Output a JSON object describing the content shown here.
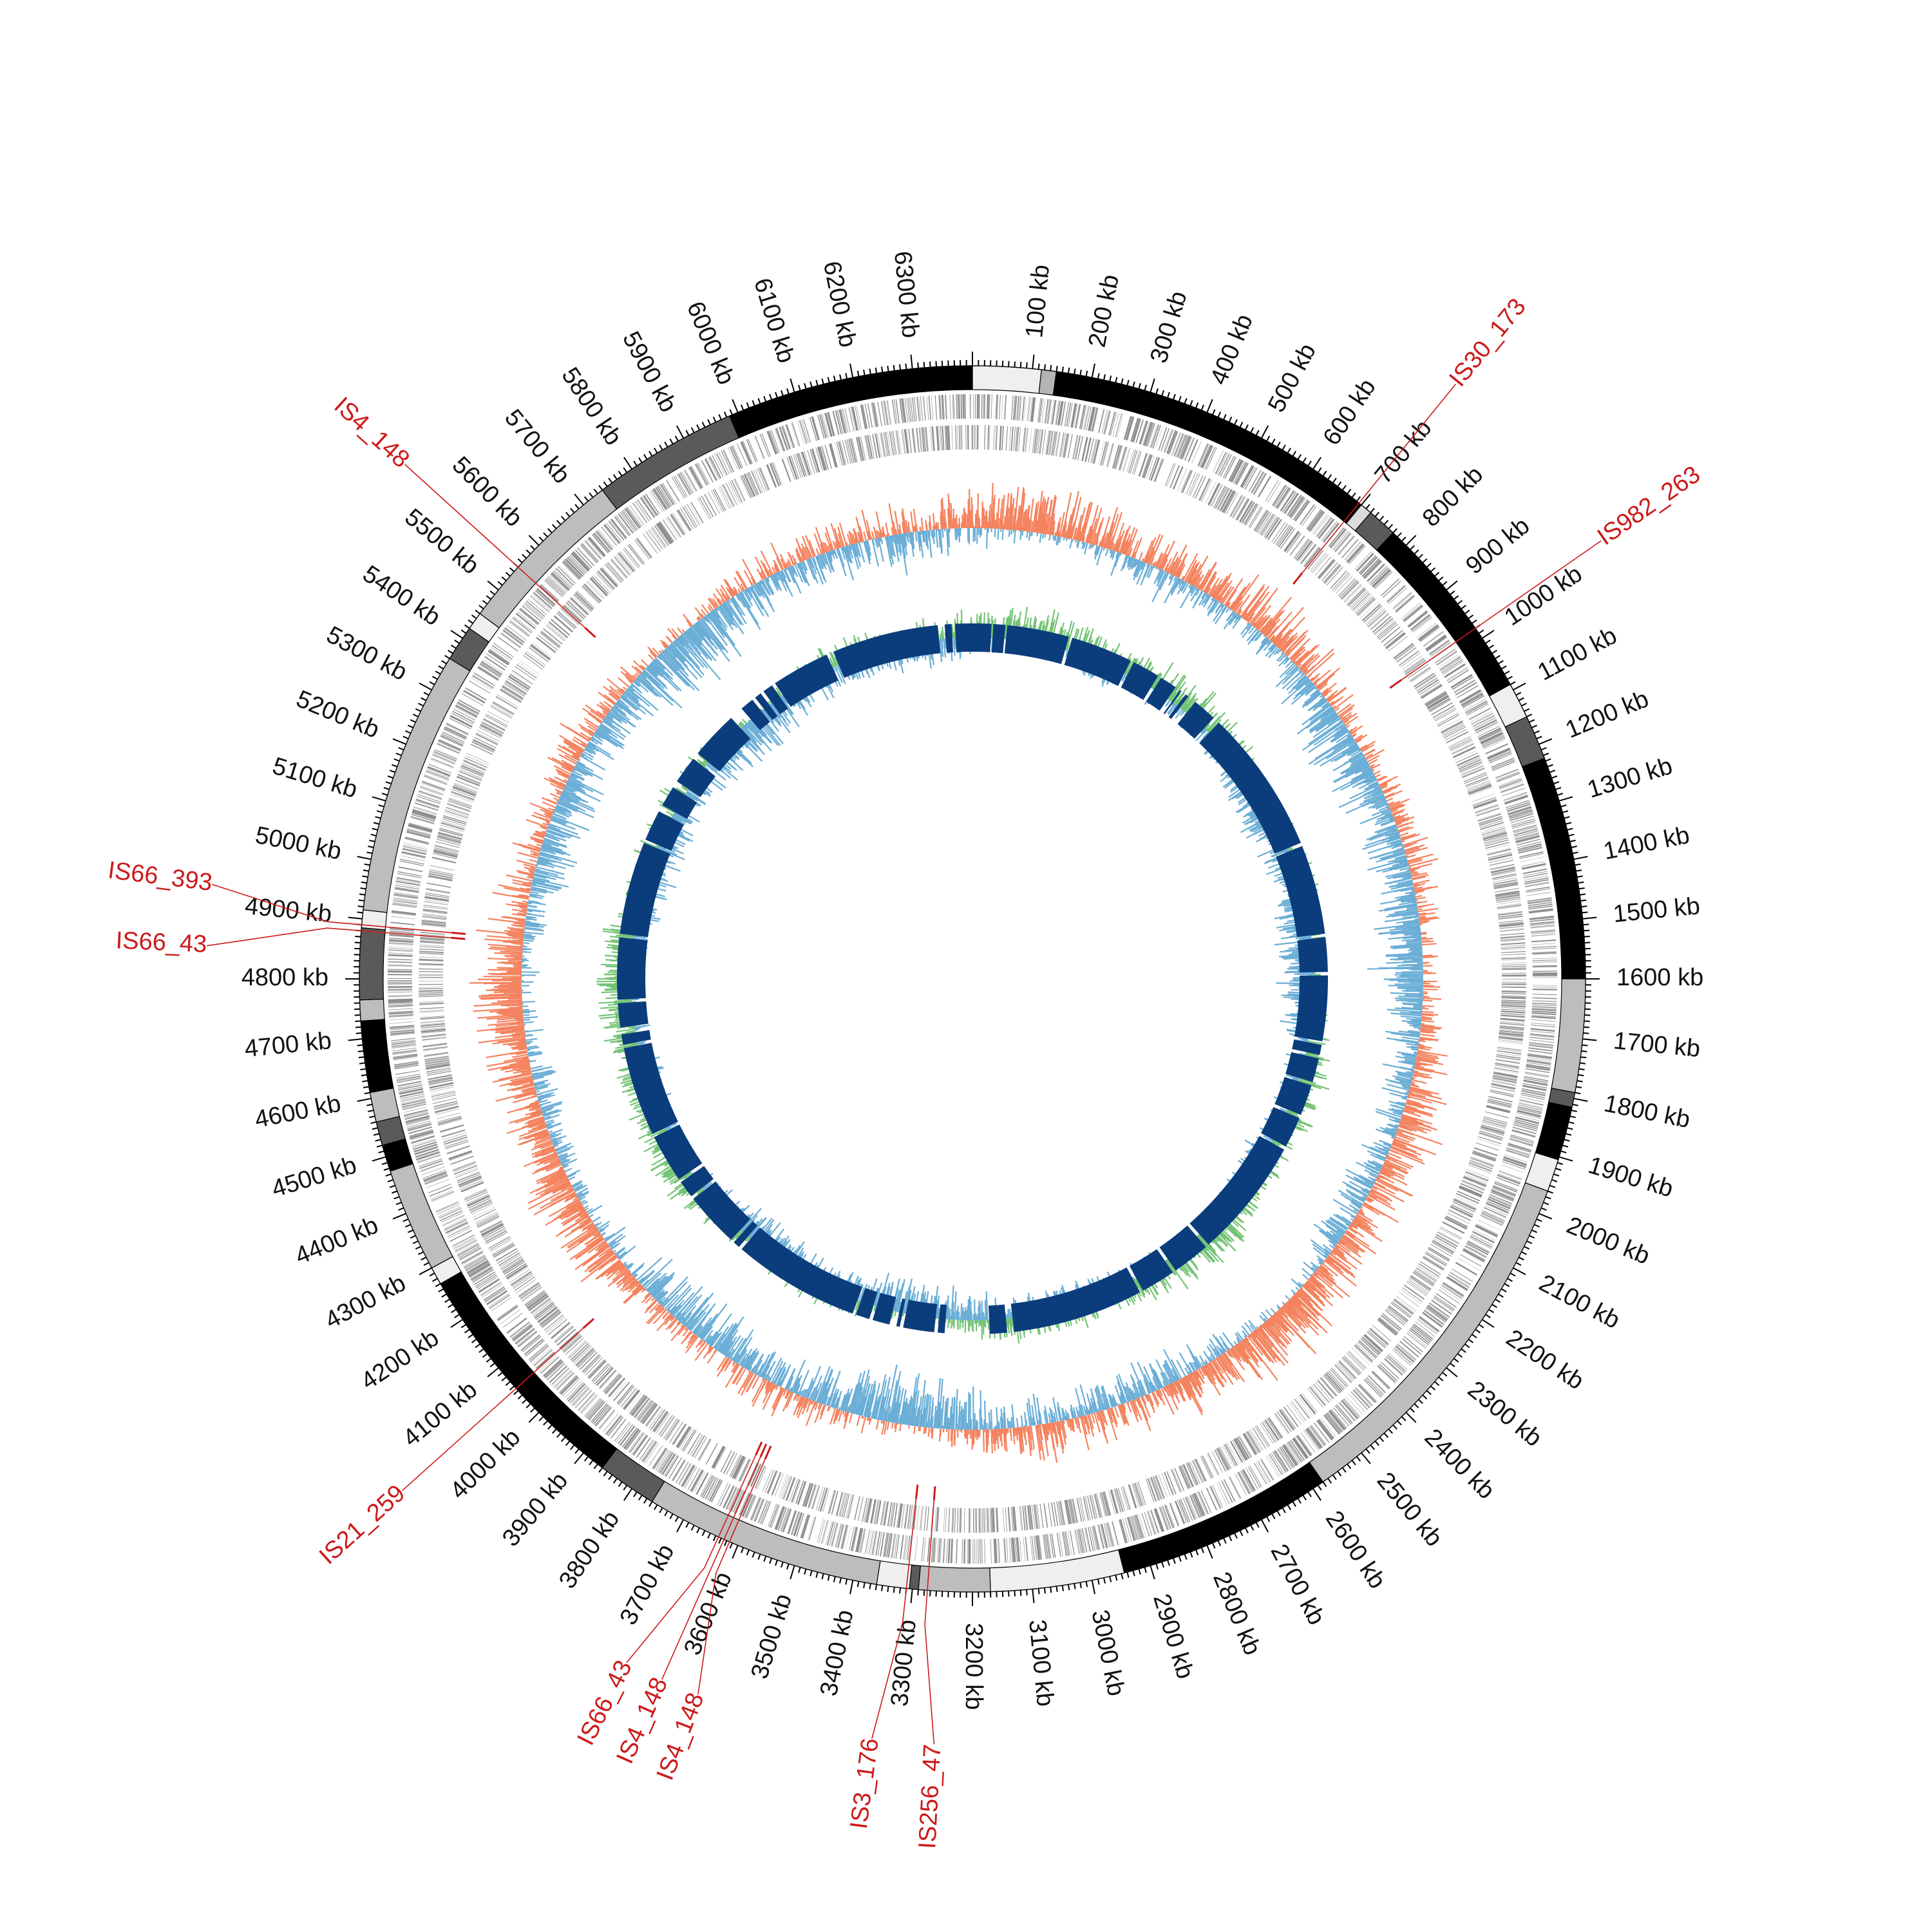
{
  "genome": {
    "length_kb": 6400,
    "tick_labels": [
      "100 kb",
      "200 kb",
      "300 kb",
      "400 kb",
      "500 kb",
      "600 kb",
      "700 kb",
      "800 kb",
      "900 kb",
      "1000 kb",
      "1100 kb",
      "1200 kb",
      "1300 kb",
      "1400 kb",
      "1500 kb",
      "1600 kb",
      "1700 kb",
      "1800 kb",
      "1900 kb",
      "2000 kb",
      "2100 kb",
      "2200 kb",
      "2300 kb",
      "2400 kb",
      "2500 kb",
      "2600 kb",
      "2700 kb",
      "2800 kb",
      "2900 kb",
      "3000 kb",
      "3100 kb",
      "3200 kb",
      "3300 kb",
      "3400 kb",
      "3500 kb",
      "3600 kb",
      "3700 kb",
      "3800 kb",
      "3900 kb",
      "4000 kb",
      "4100 kb",
      "4200 kb",
      "4300 kb",
      "4400 kb",
      "4500 kb",
      "4600 kb",
      "4700 kb",
      "4800 kb",
      "4900 kb",
      "5000 kb",
      "5100 kb",
      "5200 kb",
      "5300 kb",
      "5400 kb",
      "5500 kb",
      "5600 kb",
      "5700 kb",
      "5800 kb",
      "5900 kb",
      "6000 kb",
      "6100 kb",
      "6200 kb",
      "6300 kb"
    ]
  },
  "contigs": [
    {
      "start": 0,
      "end": 115,
      "shade": "#efefef"
    },
    {
      "start": 115,
      "end": 140,
      "shade": "#b4b4b4"
    },
    {
      "start": 140,
      "end": 700,
      "shade": "#000000"
    },
    {
      "start": 700,
      "end": 720,
      "shade": "#dcdcdc"
    },
    {
      "start": 720,
      "end": 770,
      "shade": "#5a5a5a"
    },
    {
      "start": 770,
      "end": 1090,
      "shade": "#000000"
    },
    {
      "start": 1090,
      "end": 1150,
      "shade": "#efefef"
    },
    {
      "start": 1150,
      "end": 1225,
      "shade": "#5a5a5a"
    },
    {
      "start": 1225,
      "end": 1600,
      "shade": "#000000"
    },
    {
      "start": 1600,
      "end": 1790,
      "shade": "#bdbdbd"
    },
    {
      "start": 1790,
      "end": 1815,
      "shade": "#5a5a5a"
    },
    {
      "start": 1815,
      "end": 1905,
      "shade": "#000000"
    },
    {
      "start": 1905,
      "end": 1960,
      "shade": "#efefef"
    },
    {
      "start": 1960,
      "end": 2580,
      "shade": "#bdbdbd"
    },
    {
      "start": 2580,
      "end": 2945,
      "shade": "#000000"
    },
    {
      "start": 2945,
      "end": 3170,
      "shade": "#efefef"
    },
    {
      "start": 3170,
      "end": 3290,
      "shade": "#bdbdbd"
    },
    {
      "start": 3290,
      "end": 3305,
      "shade": "#5a5a5a"
    },
    {
      "start": 3305,
      "end": 3360,
      "shade": "#efefef"
    },
    {
      "start": 3360,
      "end": 3760,
      "shade": "#bdbdbd"
    },
    {
      "start": 3760,
      "end": 3860,
      "shade": "#5a5a5a"
    },
    {
      "start": 3860,
      "end": 4270,
      "shade": "#000000"
    },
    {
      "start": 4270,
      "end": 4300,
      "shade": "#efefef"
    },
    {
      "start": 4300,
      "end": 4475,
      "shade": "#bdbdbd"
    },
    {
      "start": 4475,
      "end": 4520,
      "shade": "#000000"
    },
    {
      "start": 4520,
      "end": 4560,
      "shade": "#5a5a5a"
    },
    {
      "start": 4560,
      "end": 4610,
      "shade": "#bdbdbd"
    },
    {
      "start": 4610,
      "end": 4730,
      "shade": "#000000"
    },
    {
      "start": 4730,
      "end": 4765,
      "shade": "#bdbdbd"
    },
    {
      "start": 4765,
      "end": 4885,
      "shade": "#5a5a5a"
    },
    {
      "start": 4885,
      "end": 4915,
      "shade": "#efefef"
    },
    {
      "start": 4915,
      "end": 5360,
      "shade": "#bdbdbd"
    },
    {
      "start": 5360,
      "end": 5420,
      "shade": "#5a5a5a"
    },
    {
      "start": 5420,
      "end": 5450,
      "shade": "#efefef"
    },
    {
      "start": 5450,
      "end": 5740,
      "shade": "#bdbdbd"
    },
    {
      "start": 5740,
      "end": 5985,
      "shade": "#5a5a5a"
    },
    {
      "start": 5985,
      "end": 6400,
      "shade": "#000000"
    }
  ],
  "insertion_sequences": [
    {
      "name": "IS30_173",
      "pos": 695
    },
    {
      "name": "IS982_263",
      "pos": 980
    },
    {
      "name": "IS256_47",
      "pos": 3275
    },
    {
      "name": "IS3_176",
      "pos": 3310
    },
    {
      "name": "IS4_148",
      "pos": 3615
    },
    {
      "name": "IS4_148",
      "pos": 3625
    },
    {
      "name": "IS66_43",
      "pos": 3635
    },
    {
      "name": "IS21_259",
      "pos": 4055
    },
    {
      "name": "IS66_43",
      "pos": 4880
    },
    {
      "name": "IS66_393",
      "pos": 4890
    },
    {
      "name": "IS4_148",
      "pos": 5550
    }
  ],
  "homology_blocks": [
    [
      0,
      55
    ],
    [
      60,
      95
    ],
    [
      100,
      280
    ],
    [
      290,
      470
    ],
    [
      480,
      560
    ],
    [
      570,
      620
    ],
    [
      635,
      640
    ],
    [
      655,
      665
    ],
    [
      690,
      760
    ],
    [
      780,
      1200
    ],
    [
      1210,
      1470
    ],
    [
      1480,
      1580
    ],
    [
      1590,
      1780
    ],
    [
      1790,
      1820
    ],
    [
      1830,
      1900
    ],
    [
      1910,
      2000
    ],
    [
      2010,
      2100
    ],
    [
      2110,
      2460
    ],
    [
      2470,
      2580
    ],
    [
      2590,
      2690
    ],
    [
      2700,
      3080
    ],
    [
      3100,
      3150
    ],
    [
      3280,
      3300
    ],
    [
      3310,
      3400
    ],
    [
      3410,
      3420
    ],
    [
      3440,
      3490
    ],
    [
      3500,
      3540
    ],
    [
      3550,
      3920
    ],
    [
      3930,
      3950
    ],
    [
      3960,
      4120
    ],
    [
      4130,
      4180
    ],
    [
      4190,
      4330
    ],
    [
      4340,
      4600
    ],
    [
      4610,
      4640
    ],
    [
      4660,
      4730
    ],
    [
      4740,
      4920
    ],
    [
      4930,
      5200
    ],
    [
      5210,
      5300
    ],
    [
      5320,
      5380
    ],
    [
      5400,
      5480
    ],
    [
      5500,
      5640
    ],
    [
      5680,
      5720
    ],
    [
      5730,
      5750
    ],
    [
      5760,
      5790
    ],
    [
      5800,
      5970
    ],
    [
      5990,
      6300
    ],
    [
      6320,
      6340
    ],
    [
      6350,
      6400
    ]
  ],
  "colors": {
    "contig_dark": "#000000",
    "gc_content_high": "#f4835f",
    "gc_content_low": "#6baed6",
    "gc_skew_positive": "#74c476",
    "gc_skew_negative": "#6baed6",
    "homology": "#0b3d7c",
    "insertion_sequence": "#cc1a1a",
    "cds": "#8e8e8e"
  }
}
